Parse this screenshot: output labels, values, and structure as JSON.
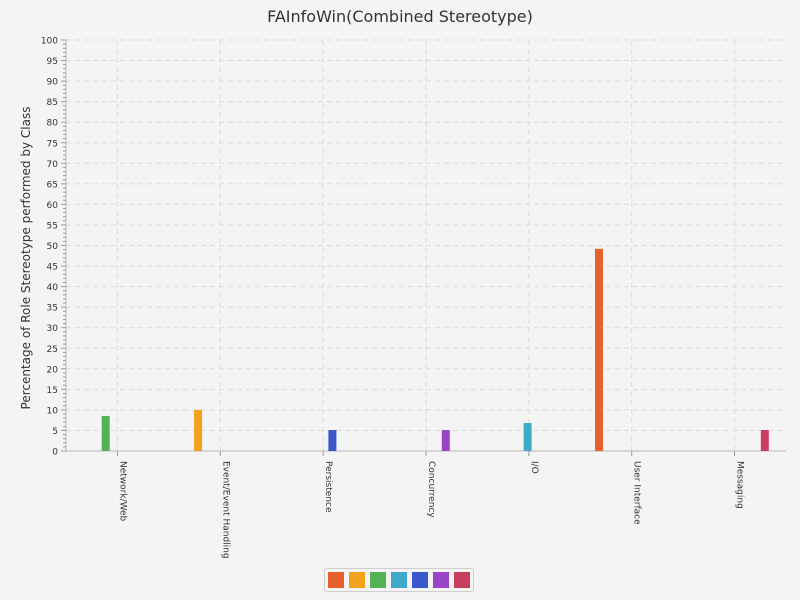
{
  "chart_data": {
    "type": "bar",
    "title": "FAInfoWin(Combined Stereotype)",
    "xlabel": "",
    "ylabel": "Percentage of Role Stereotype performed by Class",
    "ylim": [
      0,
      100
    ],
    "y_ticks": [
      "0",
      "5",
      "10",
      "15",
      "20",
      "25",
      "30",
      "35",
      "40",
      "45",
      "50",
      "55",
      "60",
      "65",
      "70",
      "75",
      "80",
      "85",
      "90",
      "95",
      "100"
    ],
    "categories": [
      "Network/Web",
      "Event/Event Handling",
      "Persistence",
      "Concurrency",
      "I/O",
      "User Interface",
      "Messaging"
    ],
    "series": [
      {
        "color": "#e8602c",
        "values": [
          0,
          0,
          0,
          0,
          0,
          49.2,
          0
        ]
      },
      {
        "color": "#f2a21c",
        "values": [
          0,
          10,
          0,
          0,
          0,
          0,
          0
        ]
      },
      {
        "color": "#55b155",
        "values": [
          8.5,
          0,
          0,
          0,
          0,
          0,
          0
        ]
      },
      {
        "color": "#41a9c9",
        "values": [
          0,
          0,
          0,
          0,
          6.8,
          0,
          0
        ]
      },
      {
        "color": "#3a58c9",
        "values": [
          0,
          0,
          5.1,
          0,
          0,
          0,
          0
        ]
      },
      {
        "color": "#9a44c9",
        "values": [
          0,
          0,
          0,
          5.1,
          0,
          0,
          0
        ]
      },
      {
        "color": "#c93e5f",
        "values": [
          0,
          0,
          0,
          0,
          0,
          0,
          5.1
        ]
      }
    ],
    "grid": true,
    "legend_position": "bottom"
  }
}
